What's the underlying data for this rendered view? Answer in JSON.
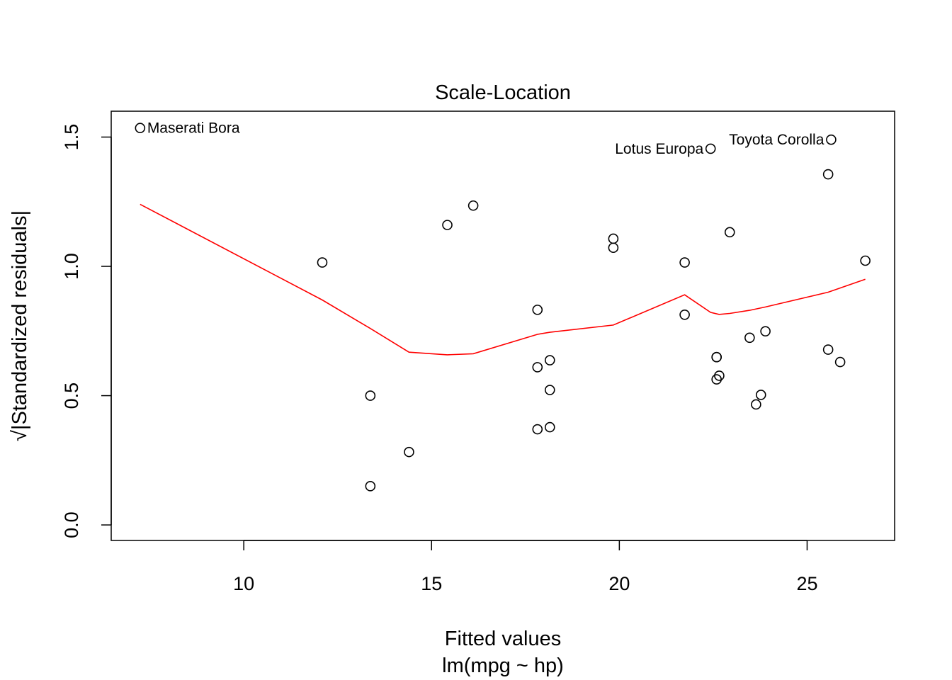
{
  "chart_data": {
    "type": "scatter",
    "title": "Scale-Location",
    "xlabel": "Fitted values",
    "xlabel_sub": "lm(mpg ~ hp)",
    "ylabel": "√|Standardized residuals|",
    "xlim": [
      6.47,
      27.33
    ],
    "ylim": [
      -0.06,
      1.6
    ],
    "x_ticks": [
      10,
      15,
      20,
      25
    ],
    "x_tick_labels": [
      "10",
      "15",
      "20",
      "25"
    ],
    "y_ticks": [
      0.0,
      0.5,
      1.0,
      1.5
    ],
    "y_tick_labels": [
      "0.0",
      "0.5",
      "1.0",
      "1.5"
    ],
    "grid": false,
    "colors": {
      "points": "#000000",
      "smoother": "#ff0000"
    },
    "points": [
      {
        "x": 7.24,
        "y": 1.535,
        "label": "Maserati Bora"
      },
      {
        "x": 12.09,
        "y": 1.015
      },
      {
        "x": 13.37,
        "y": 0.5
      },
      {
        "x": 13.37,
        "y": 0.15
      },
      {
        "x": 14.4,
        "y": 0.282
      },
      {
        "x": 15.42,
        "y": 1.16
      },
      {
        "x": 16.11,
        "y": 1.235
      },
      {
        "x": 17.82,
        "y": 0.832
      },
      {
        "x": 17.82,
        "y": 0.61
      },
      {
        "x": 17.82,
        "y": 0.37
      },
      {
        "x": 18.15,
        "y": 0.637
      },
      {
        "x": 18.15,
        "y": 0.522
      },
      {
        "x": 18.15,
        "y": 0.378
      },
      {
        "x": 19.84,
        "y": 1.107
      },
      {
        "x": 19.84,
        "y": 1.072
      },
      {
        "x": 21.74,
        "y": 1.015
      },
      {
        "x": 21.74,
        "y": 0.813
      },
      {
        "x": 22.43,
        "y": 1.455,
        "label": "Lotus Europa"
      },
      {
        "x": 22.59,
        "y": 0.649
      },
      {
        "x": 22.59,
        "y": 0.649
      },
      {
        "x": 22.66,
        "y": 0.577
      },
      {
        "x": 22.59,
        "y": 0.563
      },
      {
        "x": 22.94,
        "y": 1.132
      },
      {
        "x": 23.47,
        "y": 0.724
      },
      {
        "x": 23.64,
        "y": 0.466
      },
      {
        "x": 23.77,
        "y": 0.503
      },
      {
        "x": 23.89,
        "y": 0.749
      },
      {
        "x": 25.56,
        "y": 1.356
      },
      {
        "x": 25.56,
        "y": 0.678
      },
      {
        "x": 25.64,
        "y": 1.49,
        "label": "Toyota Corolla"
      },
      {
        "x": 25.88,
        "y": 0.63
      },
      {
        "x": 26.55,
        "y": 1.022
      }
    ],
    "smoother": {
      "x": [
        7.24,
        12.09,
        13.37,
        14.4,
        15.42,
        16.11,
        17.82,
        18.15,
        19.84,
        21.74,
        22.43,
        22.66,
        22.94,
        23.47,
        23.89,
        25.56,
        26.55
      ],
      "y": [
        1.24,
        0.87,
        0.76,
        0.668,
        0.658,
        0.662,
        0.737,
        0.745,
        0.773,
        0.89,
        0.822,
        0.814,
        0.818,
        0.83,
        0.843,
        0.9,
        0.95
      ]
    }
  }
}
